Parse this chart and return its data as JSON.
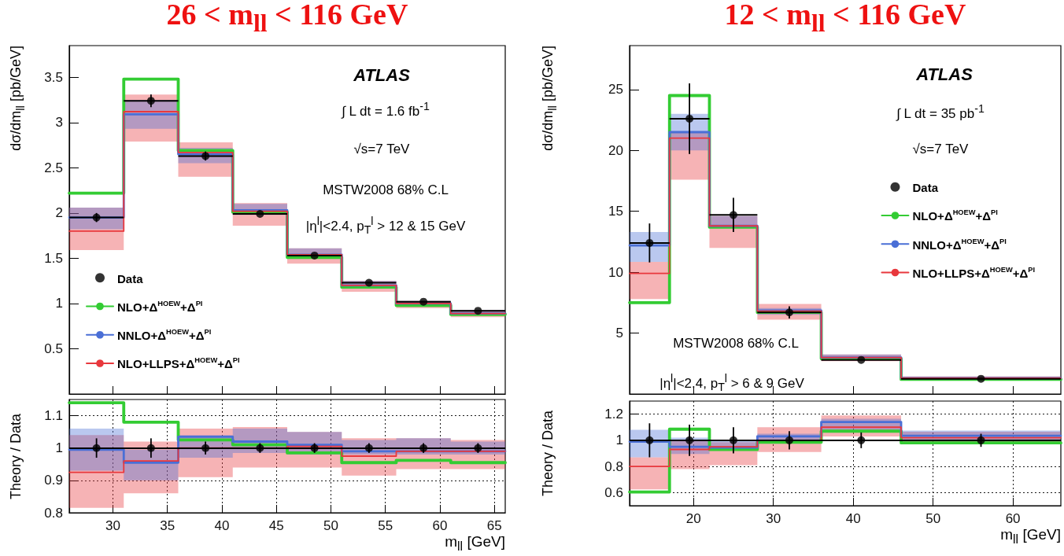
{
  "chart_data": [
    {
      "type": "step",
      "title": "26 < m$_{ll}$ < 116 GeV",
      "ylabel": "dσ/dm$_{ll}$ [pb/GeV]",
      "xlim": [
        26,
        66
      ],
      "xticks": [
        30,
        35,
        40,
        45,
        50,
        55,
        60,
        65
      ],
      "ylim": [
        0,
        3.85
      ],
      "yticks": [
        0.5,
        1,
        1.5,
        2,
        2.5,
        3,
        3.5
      ],
      "tick_labels": "y",
      "legend": "bottom left",
      "annotations": [
        "ATLAS",
        "∫ L dt = 1.6 fb$^{-1}$",
        "√s=7 TeV",
        "MSTW2008 68% C.L",
        "|η$^{l}$|<2.4, p$_{T}$$^{l}$ > 12 & 15 GeV"
      ],
      "series": [
        {
          "name": "NLO+LLPS+Δ$^{HOEW}$+Δ$^{PI}$",
          "color": "#e8383d",
          "marker": "none",
          "x": [
            26,
            31,
            36,
            41,
            46,
            51,
            56,
            61,
            66
          ],
          "values": [
            1.8,
            3.12,
            2.67,
            2.02,
            1.54,
            1.2,
            1.0,
            0.89,
            0.89
          ],
          "lower": [
            1.59,
            2.79,
            2.4,
            1.86,
            1.44,
            1.13,
            0.95,
            0.85,
            0.85
          ],
          "upper": [
            2.06,
            3.31,
            2.78,
            2.11,
            1.61,
            1.25,
            1.03,
            0.93,
            0.93
          ]
        },
        {
          "name": "NNLO+Δ$^{HOEW}$+Δ$^{PI}$",
          "color": "#4a6fd6",
          "marker": "none",
          "x": [
            26,
            31,
            36,
            41,
            46,
            51,
            56,
            61,
            66
          ],
          "values": [
            1.95,
            3.09,
            2.65,
            2.03,
            1.54,
            1.2,
            1.0,
            0.89,
            0.89
          ],
          "lower": [
            1.82,
            2.93,
            2.55,
            1.98,
            1.52,
            1.18,
            0.97,
            0.87,
            0.87
          ],
          "upper": [
            2.06,
            3.25,
            2.72,
            2.1,
            1.61,
            1.25,
            1.03,
            0.93,
            0.93
          ]
        },
        {
          "name": "NLO+Δ$^{HOEW}$+Δ$^{PI}$",
          "color": "#33cc33",
          "marker": "none",
          "x": [
            26,
            31,
            36,
            41,
            46,
            51,
            56,
            61,
            66
          ],
          "values": [
            2.22,
            3.48,
            2.69,
            2.01,
            1.51,
            1.18,
            0.98,
            0.88,
            0.88
          ]
        },
        {
          "name": "Data",
          "type": "scatter",
          "color": "#000000",
          "marker": "circle",
          "x": [
            28.5,
            33.5,
            38.5,
            43.5,
            48.5,
            53.5,
            58.5,
            63.5
          ],
          "values": [
            1.95,
            3.24,
            2.63,
            1.99,
            1.53,
            1.23,
            1.02,
            0.92
          ],
          "errors": [
            0.05,
            0.07,
            0.05,
            null,
            null,
            null,
            null,
            null
          ],
          "xerrors": [
            2.5,
            2.5,
            2.5,
            2.5,
            2.5,
            2.5,
            2.5,
            2.5
          ]
        }
      ]
    },
    {
      "type": "step",
      "xlabel": "m$_{ll}$ [GeV]",
      "ylabel": "Theory / Data",
      "xlim": [
        26,
        66
      ],
      "xticks": [
        30,
        35,
        40,
        45,
        50,
        55,
        60,
        65
      ],
      "ylim": [
        0.8,
        1.15
      ],
      "yticks": [
        0.8,
        0.9,
        1,
        1.1
      ],
      "grid": true,
      "series": [
        {
          "color": "#e8383d",
          "marker": "none",
          "x": [
            26,
            31,
            36,
            41,
            46,
            51,
            56,
            61,
            66
          ],
          "values": [
            0.925,
            0.96,
            1.0,
            1.0,
            1.005,
            0.975,
            0.99,
            0.99,
            0.99
          ],
          "lower": [
            0.815,
            0.86,
            0.91,
            0.94,
            0.94,
            0.915,
            0.935,
            0.935,
            0.935
          ],
          "upper": [
            1.04,
            1.02,
            1.06,
            1.065,
            1.05,
            1.03,
            1.03,
            1.025,
            1.025
          ]
        },
        {
          "color": "#4a6fd6",
          "marker": "none",
          "x": [
            26,
            31,
            36,
            41,
            46,
            51,
            56,
            61,
            66
          ],
          "values": [
            0.995,
            0.955,
            1.035,
            1.02,
            1.01,
            0.99,
            0.99,
            0.99,
            0.99
          ],
          "lower": [
            0.93,
            0.9,
            0.97,
            0.985,
            0.98,
            0.98,
            0.98,
            0.98,
            0.98
          ],
          "upper": [
            1.06,
            0.995,
            1.04,
            1.06,
            1.05,
            1.025,
            1.03,
            1.02,
            1.02
          ]
        },
        {
          "color": "#33cc33",
          "marker": "none",
          "x": [
            26,
            31,
            36,
            41,
            46,
            51,
            56,
            61,
            66
          ],
          "values": [
            1.14,
            1.08,
            1.025,
            1.01,
            0.985,
            0.955,
            0.962,
            0.955,
            0.955
          ]
        },
        {
          "type": "scatter",
          "color": "#000000",
          "marker": "circle",
          "x": [
            28.5,
            33.5,
            38.5,
            43.5,
            48.5,
            53.5,
            58.5,
            63.5
          ],
          "values": [
            1,
            1,
            1,
            1,
            1,
            1,
            1,
            1
          ],
          "errors": [
            0.03,
            0.03,
            0.02,
            0.015,
            0.015,
            0.015,
            0.015,
            0.015
          ]
        }
      ],
      "ref_lines": [
        {
          "axis": "y",
          "value": 1,
          "color": "#000000"
        }
      ]
    },
    {
      "type": "step",
      "title": "12 < m$_{ll}$ < 116 GeV",
      "ylabel": "dσ/dm$_{ll}$ [pb/GeV]",
      "xlim": [
        12,
        66
      ],
      "xticks": [
        20,
        30,
        40,
        50,
        60
      ],
      "ylim": [
        0,
        28.6
      ],
      "yticks": [
        5,
        10,
        15,
        20,
        25
      ],
      "tick_labels": "y",
      "legend": "right",
      "annotations": [
        "ATLAS",
        "∫ L dt = 35 pb$^{-1}$",
        "√s=7 TeV",
        "MSTW2008 68% C.L",
        "|η$^{l}$|<2.4, p$_{T}$$^{l}$ > 6 & 9 GeV"
      ],
      "series": [
        {
          "name": "NLO+LLPS+Δ$^{HOEW}$+Δ$^{PI}$",
          "color": "#e8383d",
          "marker": "none",
          "x": [
            12,
            17,
            22,
            28,
            36,
            46,
            66
          ],
          "values": [
            9.9,
            21.0,
            13.8,
            6.8,
            3.0,
            1.3,
            1.3
          ],
          "lower": [
            7.8,
            17.6,
            12.0,
            6.1,
            2.7,
            1.1,
            1.1
          ],
          "upper": [
            10.85,
            21.5,
            14.6,
            7.4,
            3.25,
            1.45,
            1.45
          ]
        },
        {
          "name": "NNLO+Δ$^{HOEW}$+Δ$^{PI}$",
          "color": "#4a6fd6",
          "marker": "none",
          "x": [
            12,
            17,
            22,
            28,
            36,
            46,
            66
          ],
          "values": [
            12.2,
            21.5,
            13.8,
            6.85,
            3.0,
            1.3,
            1.3
          ],
          "lower": [
            10.85,
            20.0,
            13.7,
            6.5,
            2.8,
            1.15,
            1.15
          ],
          "upper": [
            13.3,
            23.0,
            14.6,
            7.05,
            3.25,
            1.4,
            1.4
          ]
        },
        {
          "name": "NLO+Δ$^{HOEW}$+Δ$^{PI}$",
          "color": "#33cc33",
          "marker": "none",
          "x": [
            12,
            17,
            22,
            28,
            36,
            46,
            66
          ],
          "values": [
            7.5,
            24.5,
            13.7,
            6.7,
            2.9,
            1.2,
            1.2
          ]
        },
        {
          "name": "Data",
          "type": "scatter",
          "color": "#000000",
          "marker": "circle",
          "x": [
            14.5,
            19.5,
            25,
            32,
            41,
            56
          ],
          "values": [
            12.4,
            22.6,
            14.7,
            6.7,
            2.8,
            1.25
          ],
          "errors": [
            1.6,
            2.9,
            1.4,
            0.5,
            null,
            null
          ],
          "xerrors": [
            2.5,
            2.5,
            3,
            4,
            5,
            10
          ]
        }
      ]
    },
    {
      "type": "step",
      "xlabel": "m$_{ll}$ [GeV]",
      "ylabel": "Theory / Data",
      "xlim": [
        12,
        66
      ],
      "xticks": [
        20,
        30,
        40,
        50,
        60
      ],
      "ylim": [
        0.5,
        1.3
      ],
      "yticks": [
        0.6,
        0.8,
        1,
        1.2
      ],
      "grid": true,
      "series": [
        {
          "color": "#e8383d",
          "marker": "none",
          "x": [
            12,
            17,
            22,
            28,
            36,
            46,
            66
          ],
          "values": [
            0.8,
            0.93,
            0.95,
            1.0,
            1.1,
            1.02,
            1.02
          ],
          "lower": [
            0.625,
            0.78,
            0.81,
            0.91,
            1.03,
            0.97,
            0.97
          ],
          "upper": [
            0.87,
            1.0,
            0.985,
            1.1,
            1.19,
            1.065,
            1.065
          ]
        },
        {
          "color": "#4a6fd6",
          "marker": "none",
          "x": [
            12,
            17,
            22,
            28,
            36,
            46,
            66
          ],
          "values": [
            0.99,
            0.95,
            0.945,
            1.03,
            1.14,
            1.035,
            1.035
          ],
          "lower": [
            0.87,
            0.895,
            0.93,
            0.985,
            1.075,
            1.005,
            1.005
          ],
          "upper": [
            1.08,
            1.02,
            1.0,
            1.05,
            1.165,
            1.075,
            1.075
          ]
        },
        {
          "color": "#33cc33",
          "marker": "none",
          "x": [
            12,
            17,
            22,
            28,
            36,
            46,
            66
          ],
          "values": [
            0.605,
            1.085,
            0.93,
            0.985,
            1.07,
            0.98,
            0.98
          ]
        },
        {
          "type": "scatter",
          "color": "#000000",
          "marker": "circle",
          "x": [
            14.5,
            19.5,
            25,
            32,
            41,
            56
          ],
          "values": [
            1,
            1,
            1,
            1,
            1,
            1
          ],
          "errors": [
            0.13,
            0.12,
            0.1,
            0.07,
            0.06,
            0.05
          ]
        }
      ],
      "ref_lines": [
        {
          "axis": "y",
          "value": 1,
          "color": "#000000"
        }
      ]
    }
  ]
}
